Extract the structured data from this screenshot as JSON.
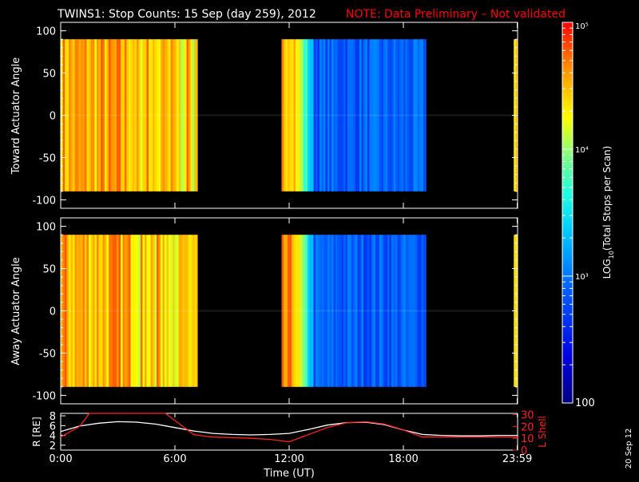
{
  "header": {
    "title": "TWINS1: Stop Counts: 15 Sep (day 259), 2012",
    "note": "NOTE: Data Preliminary – Not validated"
  },
  "side_date": "20 Sep 12",
  "colors": {
    "note": "#ff0000",
    "axis": "#ffffff",
    "background": "#000000",
    "lshell": "#ff2020",
    "radius": "#ffffff"
  },
  "chart_data": [
    {
      "type": "heatmap",
      "name": "toward-panel",
      "ylabel": "Toward Actuator Angle",
      "ylim": [
        -110,
        110
      ],
      "yticks": [
        "100",
        "50",
        "0",
        "-50",
        "-100"
      ],
      "ytick_values": [
        100,
        50,
        0,
        -50,
        -100
      ],
      "x_range_hours": [
        0,
        24
      ],
      "y_extent": [
        -90,
        90
      ],
      "data_blocks": [
        {
          "start_hour": 0.0,
          "end_hour": 7.2,
          "intensity": "high"
        },
        {
          "start_hour": 11.6,
          "end_hour": 19.2,
          "intensity": "falling-to-low"
        },
        {
          "start_hour": 23.8,
          "end_hour": 24.0,
          "intensity": "high"
        }
      ]
    },
    {
      "type": "heatmap",
      "name": "away-panel",
      "ylabel": "Away Actuator Angle",
      "ylim": [
        -110,
        110
      ],
      "yticks": [
        "100",
        "50",
        "0",
        "-50",
        "-100"
      ],
      "ytick_values": [
        100,
        50,
        0,
        -50,
        -100
      ],
      "x_range_hours": [
        0,
        24
      ],
      "y_extent": [
        -90,
        90
      ],
      "data_blocks": [
        {
          "start_hour": 0.0,
          "end_hour": 7.2,
          "intensity": "high"
        },
        {
          "start_hour": 11.6,
          "end_hour": 19.2,
          "intensity": "falling-to-low"
        },
        {
          "start_hour": 23.8,
          "end_hour": 24.0,
          "intensity": "high"
        }
      ]
    },
    {
      "type": "line",
      "name": "orbit-panel",
      "xlabel": "Time (UT)",
      "xticks": [
        "0:00",
        "6:00",
        "12:00",
        "18:00",
        "23:59"
      ],
      "xtick_hours": [
        0,
        6,
        12,
        18,
        23.98
      ],
      "ylabel_left": "R [RE]",
      "ylabel_right": "L Shell",
      "yticks_left": [
        "8",
        "6",
        "4",
        "2"
      ],
      "ytick_left_values": [
        8,
        6,
        4,
        2
      ],
      "ylim_left": [
        1,
        8.5
      ],
      "yticks_right": [
        "30",
        "20",
        "10",
        "0"
      ],
      "ytick_right_values": [
        30,
        20,
        10,
        0
      ],
      "ylim_right": [
        0,
        31
      ],
      "series": [
        {
          "name": "R [RE]",
          "axis": "left",
          "x": [
            0,
            1,
            2,
            3,
            4,
            5,
            6,
            7,
            8,
            9,
            10,
            11,
            12,
            13,
            14,
            15,
            16,
            17,
            18,
            19,
            20,
            21,
            22,
            23,
            24
          ],
          "y": [
            4.8,
            5.9,
            6.5,
            6.8,
            6.7,
            6.3,
            5.6,
            4.9,
            4.4,
            4.2,
            4.1,
            4.2,
            4.4,
            5.2,
            6.1,
            6.6,
            6.7,
            6.2,
            5.1,
            4.2,
            4.0,
            3.9,
            3.9,
            4.0,
            4.0
          ]
        },
        {
          "name": "L Shell",
          "axis": "right",
          "x": [
            0,
            1,
            1.5,
            5.5,
            6,
            7,
            8,
            9,
            10,
            11,
            12,
            13,
            14,
            15,
            16,
            17,
            18,
            19,
            20,
            21,
            22,
            23,
            24
          ],
          "y": [
            11,
            20,
            31,
            31,
            25,
            13,
            11,
            10.5,
            10,
            9,
            7,
            13,
            19,
            23,
            24,
            22,
            17,
            11,
            11,
            11,
            11,
            11,
            11
          ]
        }
      ]
    }
  ],
  "colorbar": {
    "label": "LOG10(Total Stops per Scan)",
    "label_main": "LOG",
    "label_sub": "10",
    "label_rest": "(Total Stops per Scan)",
    "ticks": [
      "10⁵",
      "10⁴",
      "10³",
      "100"
    ],
    "tick_values": [
      100000,
      10000,
      1000,
      100
    ],
    "range": [
      100,
      100000
    ],
    "scale": "log"
  }
}
